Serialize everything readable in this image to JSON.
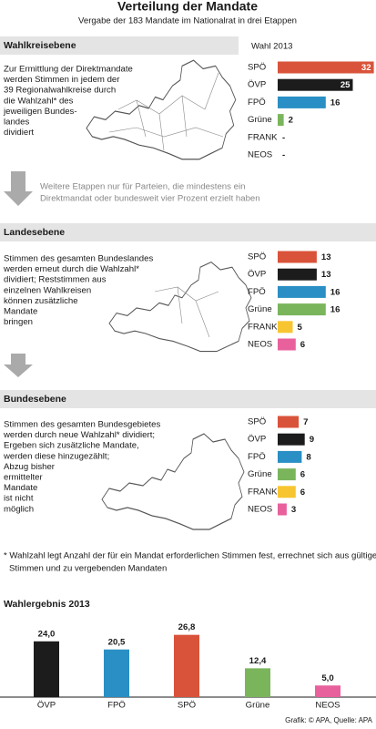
{
  "title": "Verteilung der Mandate",
  "subtitle": "Vergabe der 183 Mandate im Nationalrat in drei Etappen",
  "sections": [
    {
      "header": "Wahlkreisebene",
      "note": "Wahl 2013",
      "text": [
        "Zur Ermittlung der Direktmandate",
        "werden Stimmen in jedem der",
        "39 Regionalwahlkreise durch",
        "die Wahlzahl* des",
        "jeweiligen Bundes-",
        "landes",
        "dividiert"
      ],
      "chart": {
        "type": "bar",
        "categories": [
          "SPÖ",
          "ÖVP",
          "FPÖ",
          "Grüne",
          "FRANK",
          "NEOS"
        ],
        "values": [
          32,
          25,
          16,
          2,
          0,
          0
        ],
        "value_labels": [
          "32",
          "25",
          "16",
          "2",
          "-",
          "-"
        ],
        "colors": [
          "#d9533a",
          "#1c1c1c",
          "#2a8fc4",
          "#7ab55c",
          "#f7c530",
          "#e8609c"
        ]
      }
    },
    {
      "header": "Landesebene",
      "text": [
        "Stimmen des gesamten Bundeslandes",
        "werden erneut durch die Wahlzahl*",
        "dividiert; Reststimmen aus",
        "einzelnen Wahlkreisen",
        "können zusätzliche",
        "Mandate",
        "bringen"
      ],
      "chart": {
        "type": "bar",
        "categories": [
          "SPÖ",
          "ÖVP",
          "FPÖ",
          "Grüne",
          "FRANK",
          "NEOS"
        ],
        "values": [
          13,
          13,
          16,
          16,
          5,
          6
        ],
        "colors": [
          "#d9533a",
          "#1c1c1c",
          "#2a8fc4",
          "#7ab55c",
          "#f7c530",
          "#e8609c"
        ]
      }
    },
    {
      "header": "Bundesebene",
      "text": [
        "Stimmen des gesamten Bundesgebietes",
        "werden durch neue Wahlzahl* dividiert;",
        "Ergeben sich zusätzliche Mandate,",
        "werden diese hinzugezählt;",
        "Abzug bisher",
        "ermittelter",
        "Mandate",
        "ist nicht",
        "möglich"
      ],
      "chart": {
        "type": "bar",
        "categories": [
          "SPÖ",
          "ÖVP",
          "FPÖ",
          "Grüne",
          "FRANK",
          "NEOS"
        ],
        "values": [
          7,
          9,
          8,
          6,
          6,
          3
        ],
        "colors": [
          "#d9533a",
          "#1c1c1c",
          "#2a8fc4",
          "#7ab55c",
          "#f7c530",
          "#e8609c"
        ]
      }
    }
  ],
  "arrow_note": [
    "Weitere Etappen nur für Parteien, die mindestens ein",
    "Direktmandat oder bundesweit vier Prozent erzielt haben"
  ],
  "footnote": [
    "* Wahlzahl legt Anzahl der für ein Mandat erforderlichen Stimmen fest, errechnet sich aus gültigen",
    "Stimmen und zu vergebenden Mandaten"
  ],
  "chart_data": {
    "type": "bar",
    "title": "Wahlergebnis 2013",
    "categories": [
      "ÖVP",
      "FPÖ",
      "SPÖ",
      "Grüne",
      "NEOS"
    ],
    "values": [
      24.0,
      20.5,
      26.8,
      12.4,
      5.0
    ],
    "value_labels": [
      "24,0",
      "20,5",
      "26,8",
      "12,4",
      "5,0"
    ],
    "colors": [
      "#1c1c1c",
      "#2a8fc4",
      "#d9533a",
      "#7ab55c",
      "#e8609c"
    ]
  },
  "credit": "Grafik: © APA, Quelle: APA"
}
